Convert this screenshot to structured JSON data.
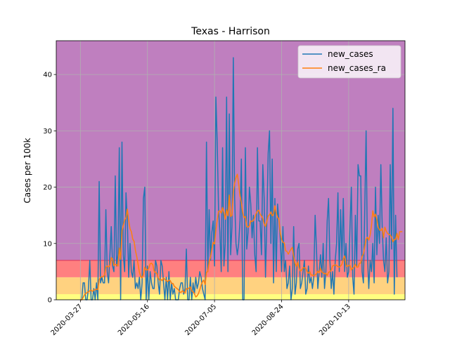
{
  "chart_data": {
    "type": "line",
    "title": "Texas - Harrison",
    "xlabel": "",
    "ylabel": "Cases per 100k",
    "ylim": [
      0,
      46
    ],
    "yticks": [
      0,
      10,
      20,
      30,
      40
    ],
    "x_start_date": "2020-03-27",
    "x_range_dates": [
      "2020-03-09",
      "2020-11-24"
    ],
    "xticks": [
      "2020-03-27",
      "2020-05-16",
      "2020-07-05",
      "2020-08-24",
      "2020-10-13"
    ],
    "grid": true,
    "legend_position": "top-right",
    "risk_bands": [
      {
        "from": 0,
        "to": 1,
        "color": "#ffff80"
      },
      {
        "from": 1,
        "to": 4,
        "color": "#ffd280"
      },
      {
        "from": 4,
        "to": 7,
        "color": "#ff8080"
      },
      {
        "from": 7,
        "to": 46,
        "color": "#bf7fbf"
      }
    ],
    "band_line": {
      "value": 7,
      "color": "#e03050"
    },
    "series": [
      {
        "name": "new_cases",
        "color": "#1f77b4",
        "values": [
          0,
          0,
          3,
          3,
          0,
          0,
          2,
          7,
          0,
          0,
          2,
          0,
          3,
          0,
          21,
          3,
          4,
          3,
          3,
          16,
          5,
          3,
          8,
          13,
          6,
          5,
          22,
          6,
          8,
          27,
          0,
          28,
          8,
          5,
          19,
          14,
          4,
          10,
          5,
          4,
          7,
          2,
          3,
          2,
          4,
          0,
          3,
          18,
          20,
          0,
          6,
          0,
          5,
          3,
          2,
          2,
          7,
          6,
          3,
          1,
          7,
          6,
          3,
          0,
          4,
          0,
          5,
          0,
          3,
          1,
          2,
          0,
          0,
          0,
          2,
          3,
          3,
          1,
          2,
          9,
          0,
          0,
          4,
          0,
          3,
          1,
          4,
          2,
          3,
          5,
          4,
          2,
          1,
          0,
          28,
          5,
          16,
          7,
          12,
          14,
          6,
          36,
          28,
          16,
          12,
          5,
          27,
          6,
          10,
          36,
          5,
          33,
          8,
          13,
          43,
          18,
          10,
          8,
          10,
          14,
          25,
          0,
          0,
          27,
          9,
          12,
          20,
          17,
          11,
          15,
          8,
          5,
          27,
          14,
          14,
          8,
          24,
          18,
          4,
          14,
          26,
          30,
          10,
          25,
          3,
          18,
          5,
          17,
          14,
          11,
          5,
          13,
          5,
          7,
          2,
          3,
          6,
          0,
          2,
          13,
          1,
          3,
          9,
          10,
          2,
          3,
          5,
          7,
          1,
          2,
          6,
          3,
          4,
          2,
          4,
          15,
          9,
          2,
          5,
          8,
          4,
          10,
          2,
          5,
          14,
          18,
          7,
          2,
          5,
          1,
          7,
          10,
          19,
          5,
          16,
          7,
          18,
          5,
          10,
          4,
          5,
          13,
          20,
          4,
          1,
          15,
          6,
          24,
          22,
          22,
          5,
          3,
          16,
          30,
          8,
          2,
          7,
          5,
          10,
          3,
          20,
          8,
          15,
          10,
          24,
          13,
          7,
          5,
          11,
          3,
          5,
          24,
          9,
          34,
          1,
          15,
          4
        ]
      },
      {
        "name": "new_cases_ra",
        "color": "#ff7f0e",
        "values": [
          0,
          0,
          0.4,
          0.9,
          1.1,
          1.3,
          1.4,
          1.6,
          1.7,
          1.5,
          1.7,
          1.8,
          1.9,
          1.8,
          3.6,
          4,
          4.1,
          4.1,
          4.4,
          5.8,
          6,
          5.8,
          6.1,
          7.5,
          7.2,
          6.1,
          6.3,
          6.2,
          6,
          9.2,
          7.2,
          12.3,
          13.2,
          14.2,
          14.6,
          16.1,
          14.1,
          12.6,
          12.1,
          10.8,
          10.4,
          8.8,
          7.7,
          6.3,
          4.9,
          4.1,
          3.9,
          4.5,
          5.8,
          5.3,
          5.3,
          5.6,
          6.4,
          6.5,
          6.2,
          5.1,
          4.8,
          4.7,
          3.9,
          3.5,
          3.6,
          3.4,
          3.9,
          3.6,
          3.4,
          3.2,
          3.5,
          3.4,
          2.9,
          2.9,
          2.4,
          2.2,
          2,
          1.8,
          1.4,
          1.3,
          1.6,
          1.4,
          1.2,
          2,
          1.9,
          2.1,
          2.3,
          1.6,
          1.4,
          1.1,
          0.5,
          0.7,
          1.1,
          1.8,
          2.6,
          3.2,
          3.5,
          2.7,
          4.9,
          5,
          6.8,
          7.5,
          9,
          10.2,
          9.9,
          12.4,
          14.1,
          15.7,
          15.8,
          15.4,
          16.4,
          15.5,
          14.3,
          16,
          14.9,
          18.6,
          14.8,
          15,
          19.2,
          20.7,
          21.7,
          22.3,
          20.6,
          18.4,
          17.3,
          15.5,
          14.6,
          14.8,
          13,
          12.9,
          13.1,
          14,
          13.9,
          14.1,
          14.6,
          15.3,
          15.8,
          15.9,
          15.2,
          14.9,
          14.4,
          13.5,
          13,
          13.9,
          14.9,
          15.1,
          15.6,
          14.9,
          15.2,
          16.7,
          15.4,
          14.6,
          14.4,
          11.9,
          10.7,
          10.2,
          10.1,
          8.7,
          8.6,
          8.1,
          8.6,
          9,
          9.3,
          7.7,
          6.5,
          5.9,
          6.7,
          5.7,
          5.1,
          5.3,
          5.7,
          5.7,
          5.6,
          5,
          4.7,
          5,
          4.4,
          4.4,
          4.3,
          4.4,
          4.6,
          5.1,
          4.8,
          5.6,
          4.9,
          4.8,
          4.6,
          4.7,
          4.3,
          4.9,
          5,
          5.3,
          6,
          6.1,
          6.2,
          6.1,
          5.9,
          5.8,
          6,
          6.3,
          7.3,
          7.8,
          6.2,
          5.9,
          6.1,
          6.1,
          5.3,
          5.6,
          5.8,
          6.3,
          5.8,
          5.8,
          6.5,
          6.5,
          7.7,
          8.1,
          9.4,
          10.8,
          11.1,
          10.6,
          11.5,
          13.1,
          15.8,
          14.7,
          15.2,
          14.3,
          12.9,
          12.4,
          12.3,
          12.7,
          11,
          12.9,
          12.2,
          11.8,
          11.6,
          11.5,
          11.1,
          10.3,
          10.7,
          10.7,
          11.8,
          10.7,
          12.1,
          12.1,
          12.1
        ]
      }
    ]
  }
}
